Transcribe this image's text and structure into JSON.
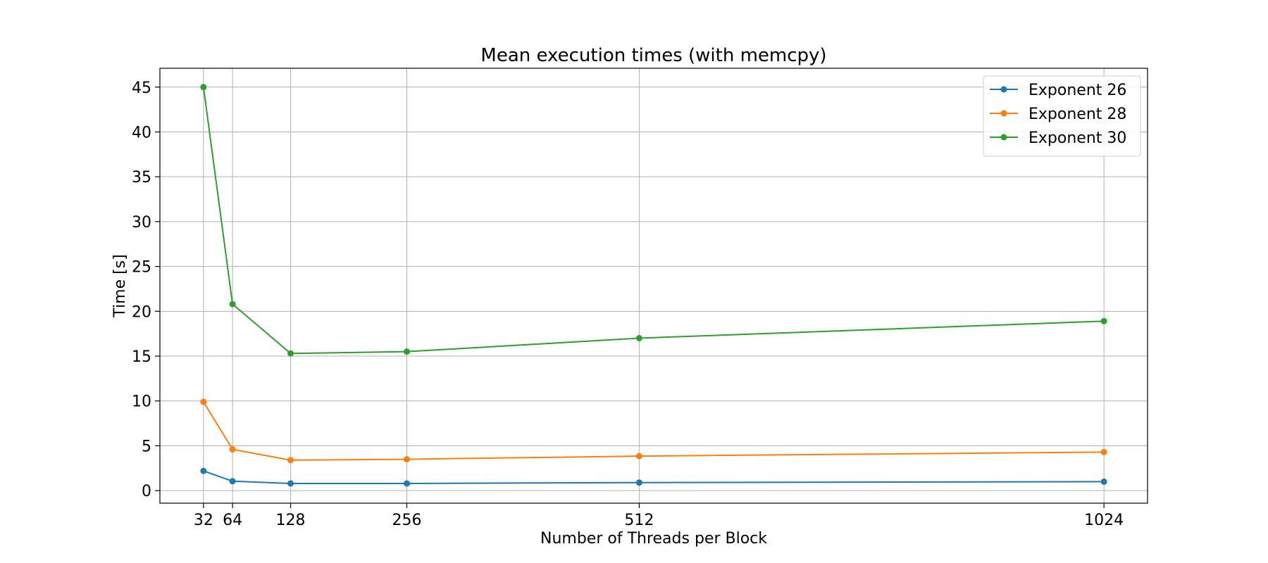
{
  "chart_data": {
    "type": "line",
    "title": "Mean execution times (with memcpy)",
    "xlabel": "Number of Threads per Block",
    "ylabel": "Time [s]",
    "x": [
      32,
      64,
      128,
      256,
      512,
      1024
    ],
    "xticks": [
      "32",
      "64",
      "128",
      "256",
      "512",
      "1024"
    ],
    "yticks": [
      "0",
      "5",
      "10",
      "15",
      "20",
      "25",
      "30",
      "35",
      "40",
      "45"
    ],
    "xlim": [
      -16,
      1072
    ],
    "ylim": [
      -1.4,
      47.1
    ],
    "grid": true,
    "legend_position": "top-right",
    "series": [
      {
        "name": "Exponent 26",
        "color": "#1f77b4",
        "values": [
          2.2,
          1.05,
          0.8,
          0.8,
          0.9,
          1.0
        ]
      },
      {
        "name": "Exponent 28",
        "color": "#ff7f0e",
        "values": [
          9.9,
          4.6,
          3.4,
          3.5,
          3.85,
          4.3
        ]
      },
      {
        "name": "Exponent 30",
        "color": "#2ca02c",
        "values": [
          45.0,
          20.8,
          15.3,
          15.5,
          17.0,
          18.9
        ]
      }
    ]
  }
}
